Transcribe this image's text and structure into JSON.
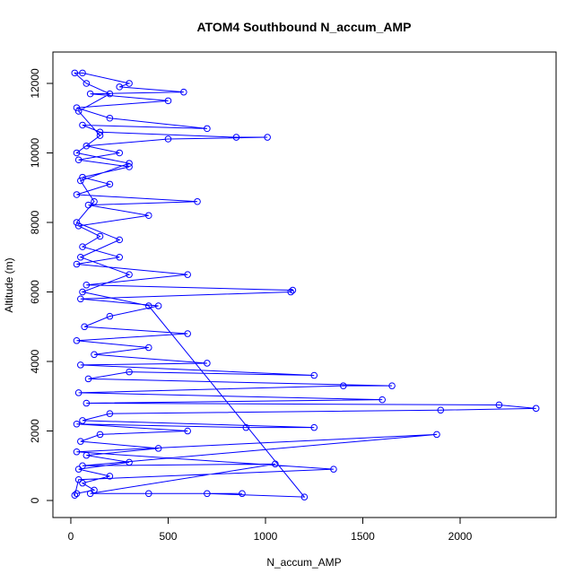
{
  "chart_data": {
    "type": "line",
    "title": "ATOM4 Southbound N_accum_AMP",
    "x_label": "N_accum_AMP",
    "y_label": "Altitude (m)",
    "x": [
      30,
      120,
      60,
      200,
      40,
      300,
      80,
      450,
      50,
      150,
      600,
      30,
      900,
      1250,
      60,
      200,
      1900,
      2390,
      2200,
      80,
      1600,
      40,
      1400,
      1650,
      90,
      300,
      1250,
      50,
      700,
      120,
      400,
      30,
      600,
      70,
      200,
      450,
      50,
      1130,
      1140,
      80,
      600,
      30,
      250,
      60,
      150,
      40,
      400,
      90,
      650,
      30,
      200,
      60,
      300,
      40,
      250,
      80,
      500,
      1010,
      850,
      150,
      60,
      700,
      200,
      30,
      500,
      100,
      580,
      250,
      300,
      60,
      20,
      80,
      200,
      40,
      150,
      30,
      300,
      50,
      120,
      30,
      250,
      50,
      300,
      60,
      400,
      1200,
      700,
      880,
      400,
      100,
      1050,
      60,
      1880,
      30,
      1350,
      40,
      20
    ],
    "series": [
      {
        "name": "N_accum_AMP",
        "color": "#0000ff",
        "values": [
          200,
          300,
          500,
          700,
          900,
          1100,
          1300,
          1500,
          1700,
          1900,
          2000,
          2200,
          2100,
          2100,
          2300,
          2500,
          2600,
          2650,
          2750,
          2800,
          2900,
          3100,
          3300,
          3300,
          3500,
          3700,
          3600,
          3900,
          3950,
          4200,
          4400,
          4600,
          4800,
          5000,
          5300,
          5600,
          5800,
          6000,
          6050,
          6200,
          6500,
          6800,
          7000,
          7300,
          7600,
          7900,
          8200,
          8500,
          8600,
          8800,
          9100,
          9300,
          9600,
          9800,
          10000,
          10200,
          10400,
          10450,
          10450,
          10600,
          10800,
          10700,
          11000,
          11300,
          11500,
          11700,
          11750,
          11900,
          12000,
          12300,
          12300,
          12000,
          11700,
          11200,
          10500,
          10000,
          9700,
          9200,
          8600,
          8000,
          7500,
          7000,
          6500,
          6000,
          5600,
          100,
          200,
          200,
          200,
          200,
          1050,
          1000,
          1900,
          1400,
          900,
          600,
          150
        ]
      }
    ],
    "xlim": [
      -92,
      2493
    ],
    "ylim": [
      -490,
      12903
    ],
    "xticks": [
      0,
      500,
      1000,
      1500,
      2000
    ],
    "yticks": [
      0,
      2000,
      4000,
      6000,
      8000,
      10000,
      12000
    ]
  }
}
